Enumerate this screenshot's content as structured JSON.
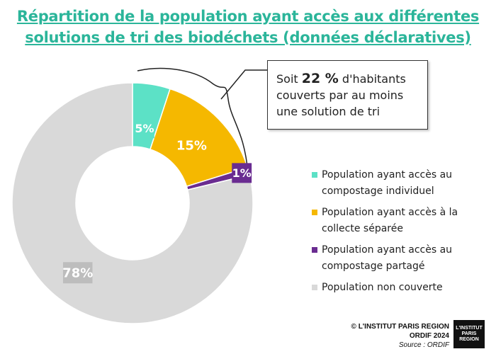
{
  "title": {
    "line1": "Répartition de la population ayant accès aux différentes",
    "line2": "solutions de tri des biodéchets (données déclaratives)"
  },
  "callout": {
    "prefix": "Soit ",
    "value": "22 %",
    "suffix": " d'habitants couverts par au moins une solution de tri"
  },
  "chart_data": {
    "type": "pie",
    "variant": "donut",
    "categories": [
      "Population ayant accès au compostage individuel",
      "Population ayant accès à la collecte séparée",
      "Population ayant accès au compostage partagé",
      "Population non couverte"
    ],
    "values": [
      5,
      15,
      1,
      78
    ],
    "labels": [
      "5%",
      "15%",
      "1%",
      "78%"
    ],
    "colors": [
      "#5ce1c6",
      "#f5b800",
      "#6a2c91",
      "#d9d9d9"
    ],
    "legend_position": "right"
  },
  "credit": {
    "line1": "© L'INSTITUT PARIS REGION",
    "line2": "ORDIF 2024",
    "line3": "Source : ORDIF"
  },
  "logo": {
    "line1": "L'INSTITUT",
    "line2": "PARIS",
    "line3": "REGION"
  }
}
